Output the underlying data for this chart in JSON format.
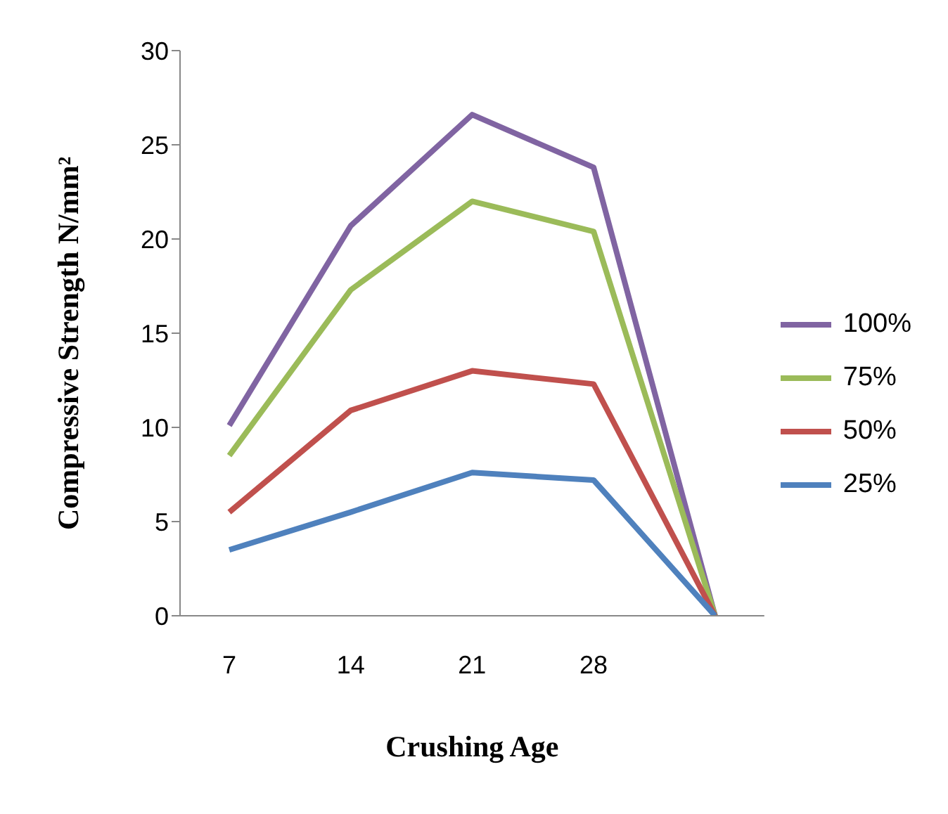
{
  "chart_data": {
    "type": "line",
    "xlabel": "Crushing Age",
    "ylabel": "Compressive Strength N/mm²",
    "categories": [
      "7",
      "14",
      "21",
      "28",
      null
    ],
    "ylim": [
      0,
      30
    ],
    "yticks": [
      0,
      5,
      10,
      15,
      20,
      25,
      30
    ],
    "grid": false,
    "legend": "right",
    "marker": "none",
    "line_style": "solid",
    "series": [
      {
        "name": "100%",
        "color": "#8064a2",
        "values": [
          10.1,
          20.7,
          26.6,
          23.8,
          0
        ]
      },
      {
        "name": "75%",
        "color": "#9bbb59",
        "values": [
          8.5,
          17.3,
          22,
          20.4,
          0
        ]
      },
      {
        "name": "50%",
        "color": "#c0504d",
        "values": [
          5.5,
          10.9,
          13,
          12.3,
          0
        ]
      },
      {
        "name": "25%",
        "color": "#4f81bd",
        "values": [
          3.5,
          5.5,
          7.6,
          7.2,
          0
        ]
      }
    ]
  }
}
